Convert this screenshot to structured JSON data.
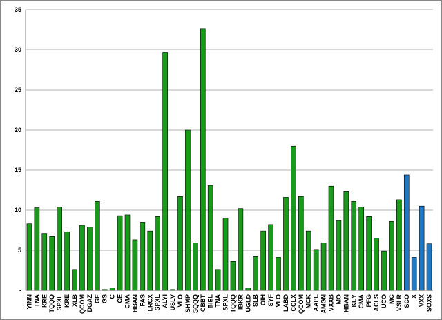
{
  "chart_data": {
    "type": "bar",
    "categories": [
      "YINN",
      "TNA",
      "KRE",
      "TQQQ",
      "SPXL",
      "KRE",
      "XLB",
      "QCOM",
      "DGAZ",
      "GE",
      "GS",
      "C",
      "CE",
      "CMA",
      "HBAN",
      "FAS",
      "LRCX",
      "SPXL",
      "ALYI",
      "USLV",
      "VLO",
      "SHMP",
      "SQQQ",
      "CBBT",
      "BIEL",
      "TNA",
      "SPXL",
      "TQQQ",
      "IBKR",
      "UGLD",
      "SLB",
      "OIH",
      "SYF",
      "VLO",
      "LABD",
      "CCLX",
      "QCOM",
      "MCK",
      "AAPL",
      "AMGN",
      "VXXB",
      "MO",
      "HBAN",
      "KEY",
      "CMA",
      "PFG",
      "ACLS",
      "UCO",
      "MC",
      "VSLR",
      "SCO",
      "X",
      "VXX",
      "SOXS"
    ],
    "values": [
      8.3,
      10.3,
      7.1,
      6.7,
      10.4,
      7.3,
      2.6,
      8.1,
      7.9,
      11.1,
      0.1,
      0.3,
      9.3,
      9.4,
      6.3,
      8.5,
      7.4,
      9.2,
      29.7,
      0.1,
      11.7,
      20.0,
      5.9,
      32.6,
      13.1,
      2.6,
      9.0,
      3.6,
      10.2,
      0.3,
      4.2,
      7.4,
      8.2,
      4.1,
      11.6,
      18.0,
      11.7,
      7.4,
      5.1,
      5.9,
      13.0,
      8.7,
      12.3,
      11.1,
      10.4,
      9.2,
      6.5,
      4.9,
      8.6,
      11.3,
      14.4,
      4.1,
      10.5,
      5.8
    ],
    "colors": [
      "#1a9a1a",
      "#1a9a1a",
      "#1a9a1a",
      "#1a9a1a",
      "#1a9a1a",
      "#1a9a1a",
      "#1a9a1a",
      "#1a9a1a",
      "#1a9a1a",
      "#1a9a1a",
      "#1a9a1a",
      "#1a9a1a",
      "#1a9a1a",
      "#1a9a1a",
      "#1a9a1a",
      "#1a9a1a",
      "#1a9a1a",
      "#1a9a1a",
      "#1a9a1a",
      "#1a9a1a",
      "#1a9a1a",
      "#1a9a1a",
      "#1a9a1a",
      "#1a9a1a",
      "#1a9a1a",
      "#1a9a1a",
      "#1a9a1a",
      "#1a9a1a",
      "#1a9a1a",
      "#1a9a1a",
      "#1a9a1a",
      "#1a9a1a",
      "#1a9a1a",
      "#1a9a1a",
      "#1a9a1a",
      "#1a9a1a",
      "#1a9a1a",
      "#1a9a1a",
      "#1a9a1a",
      "#1a9a1a",
      "#1a9a1a",
      "#1a9a1a",
      "#1a9a1a",
      "#1a9a1a",
      "#1a9a1a",
      "#1a9a1a",
      "#1a9a1a",
      "#1a9a1a",
      "#1a9a1a",
      "#1a9a1a",
      "#1f78c1",
      "#1f78c1",
      "#1f78c1",
      "#1f78c1"
    ],
    "ylim": [
      0,
      35
    ],
    "yticks": [
      {
        "value": 0,
        "label": "-"
      },
      5,
      10,
      15,
      20,
      25,
      30,
      35
    ],
    "grid": true
  }
}
